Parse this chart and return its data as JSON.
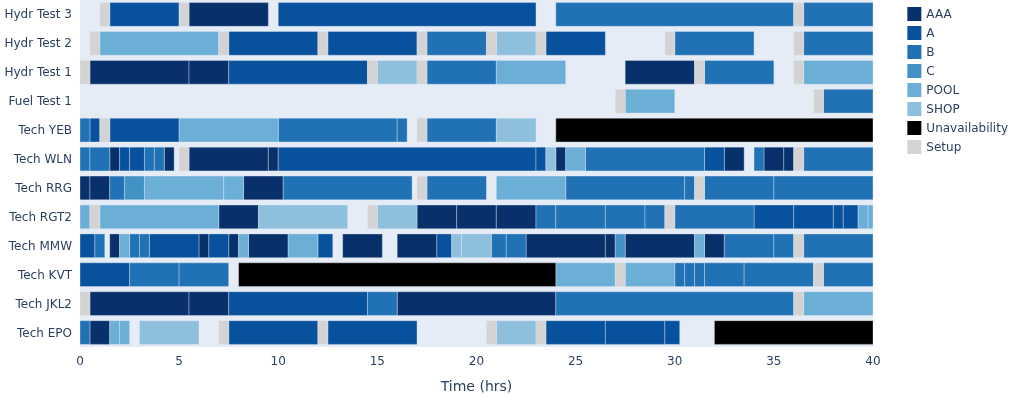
{
  "chart_data": {
    "type": "bar",
    "orientation": "horizontal",
    "xlabel": "Time (hrs)",
    "xlim": [
      0,
      40
    ],
    "xticks": [
      0,
      5,
      10,
      15,
      20,
      25,
      30,
      35,
      40
    ],
    "grid": false,
    "legend": "top right",
    "categories": [
      "Hydr Test 3",
      "Hydr Test 2",
      "Hydr Test 1",
      "Fuel Test 1",
      "Tech YEB",
      "Tech WLN",
      "Tech RRG",
      "Tech RGT2",
      "Tech MMW",
      "Tech KVT",
      "Tech JKL2",
      "Tech EPO"
    ],
    "series": [
      {
        "name": "AAA",
        "color": "#08306b",
        "base": [
          5.5,
          null,
          0.5,
          null,
          null,
          1.5,
          0,
          7,
          1.5,
          null,
          0.5,
          0.5
        ],
        "values": [
          4,
          null,
          5,
          null,
          null,
          0.5,
          0.5,
          2,
          0.5,
          null,
          5,
          1
        ]
      },
      {
        "color": "#08306b",
        "base": [
          null,
          null,
          5.5,
          null,
          null,
          4.25,
          0.5,
          17,
          6,
          null,
          5.5,
          null
        ],
        "values": [
          null,
          null,
          2,
          null,
          null,
          0.5,
          1,
          2,
          0.5,
          null,
          2,
          null
        ]
      },
      {
        "color": "#08306b",
        "base": [
          null,
          null,
          27.5,
          null,
          null,
          5.5,
          8.25,
          19,
          7.5,
          null,
          16,
          null
        ],
        "values": [
          null,
          null,
          3.5,
          null,
          null,
          4,
          2,
          2,
          0.5,
          null,
          8,
          null
        ]
      },
      {
        "color": "#08306b",
        "base": [
          null,
          null,
          null,
          null,
          null,
          9.5,
          null,
          21,
          8.5,
          null,
          null,
          null
        ],
        "values": [
          null,
          null,
          null,
          null,
          null,
          0.5,
          null,
          2,
          2,
          null,
          null,
          null
        ]
      },
      {
        "color": "#08306b",
        "base": [
          null,
          null,
          null,
          null,
          null,
          24,
          null,
          null,
          13.25,
          null,
          null,
          null
        ],
        "values": [
          null,
          null,
          null,
          null,
          null,
          0.5,
          null,
          null,
          2,
          null,
          null,
          null
        ]
      },
      {
        "color": "#08306b",
        "base": [
          null,
          null,
          null,
          null,
          null,
          32.5,
          null,
          null,
          16,
          null,
          null,
          null
        ],
        "values": [
          null,
          null,
          null,
          null,
          null,
          1,
          null,
          null,
          2,
          null,
          null,
          null
        ]
      },
      {
        "color": "#08306b",
        "base": [
          null,
          null,
          null,
          null,
          null,
          34.5,
          null,
          null,
          22.5,
          null,
          null,
          null
        ],
        "values": [
          null,
          null,
          null,
          null,
          null,
          1,
          null,
          null,
          4,
          null,
          null,
          null
        ]
      },
      {
        "color": "#08306b",
        "base": [
          null,
          null,
          null,
          null,
          null,
          35.5,
          null,
          null,
          26.5,
          null,
          null,
          null
        ],
        "values": [
          null,
          null,
          null,
          null,
          null,
          0.5,
          null,
          null,
          0.5,
          null,
          null,
          null
        ]
      },
      {
        "color": "#08306b",
        "base": [
          null,
          null,
          null,
          null,
          null,
          null,
          null,
          null,
          27.5,
          null,
          null,
          null
        ],
        "values": [
          null,
          null,
          null,
          null,
          null,
          null,
          null,
          null,
          3.5,
          null,
          null,
          null
        ]
      },
      {
        "color": "#08306b",
        "base": [
          null,
          null,
          null,
          null,
          null,
          null,
          null,
          null,
          31.5,
          null,
          null,
          null
        ],
        "values": [
          null,
          null,
          null,
          null,
          null,
          null,
          null,
          null,
          1,
          null,
          null,
          null
        ]
      },
      {
        "name": "A",
        "color": "#08519c",
        "base": [
          1.5,
          7.5,
          7.5,
          null,
          0.5,
          2,
          null,
          34,
          0,
          0,
          7.5,
          7.5
        ],
        "values": [
          3.5,
          4.5,
          7,
          null,
          0.5,
          0.5,
          null,
          2,
          0.75,
          2.5,
          7,
          4.5
        ]
      },
      {
        "color": "#08519c",
        "base": [
          10,
          12.5,
          null,
          null,
          1.5,
          2.5,
          null,
          36,
          3.5,
          null,
          null,
          12.5
        ],
        "values": [
          13,
          4.5,
          null,
          null,
          3.5,
          0.75,
          null,
          2,
          2.5,
          null,
          null,
          4.5
        ]
      },
      {
        "color": "#08519c",
        "base": [
          null,
          23.5,
          null,
          null,
          null,
          10,
          null,
          38,
          6.5,
          null,
          null,
          23.5
        ],
        "values": [
          null,
          3,
          null,
          null,
          null,
          13,
          null,
          0.5,
          1,
          null,
          null,
          3
        ]
      },
      {
        "color": "#08519c",
        "base": [
          null,
          null,
          null,
          null,
          null,
          23,
          null,
          38.5,
          12,
          null,
          null,
          26.5
        ],
        "values": [
          null,
          null,
          null,
          null,
          null,
          0.5,
          null,
          0.75,
          0.75,
          null,
          null,
          3
        ]
      },
      {
        "color": "#08519c",
        "base": [
          null,
          null,
          null,
          null,
          null,
          31.5,
          null,
          null,
          18,
          null,
          null,
          29.5
        ],
        "values": [
          null,
          null,
          null,
          null,
          null,
          1,
          null,
          null,
          0.75,
          null,
          null,
          0.75
        ]
      },
      {
        "name": "B",
        "color": "#2171b5",
        "base": [
          24,
          17.5,
          17.5,
          37.5,
          0,
          0,
          1.5,
          23,
          0.75,
          2.5,
          14.5,
          0
        ],
        "values": [
          12,
          3,
          3.5,
          2.5,
          0.5,
          0.5,
          0.75,
          1,
          0.5,
          2.5,
          1.5,
          0.5
        ]
      },
      {
        "color": "#2171b5",
        "base": [
          36.5,
          30,
          31.5,
          null,
          10,
          0.5,
          10.25,
          24,
          2.5,
          5,
          24,
          null
        ],
        "values": [
          3.5,
          4,
          3.5,
          null,
          6,
          1,
          6.5,
          2.5,
          0.5,
          2.5,
          12,
          null
        ]
      },
      {
        "color": "#2171b5",
        "base": [
          null,
          36.5,
          null,
          null,
          16,
          3.25,
          17.5,
          26.5,
          3,
          30,
          null,
          null
        ],
        "values": [
          null,
          3.5,
          null,
          null,
          0.5,
          0.5,
          3,
          2,
          0.5,
          0.5,
          null,
          null
        ]
      },
      {
        "color": "#2171b5",
        "base": [
          null,
          null,
          null,
          null,
          17.5,
          3.75,
          24.5,
          28.5,
          20.75,
          30.5,
          null,
          null
        ],
        "values": [
          null,
          null,
          null,
          null,
          3.5,
          0.5,
          6,
          1,
          0.75,
          0.5,
          null,
          null
        ]
      },
      {
        "color": "#2171b5",
        "base": [
          null,
          null,
          null,
          null,
          null,
          25.5,
          30.5,
          30,
          21.5,
          31,
          null,
          null
        ],
        "values": [
          null,
          null,
          null,
          null,
          null,
          6,
          0.5,
          4,
          1,
          0.5,
          null,
          null
        ]
      },
      {
        "color": "#2171b5",
        "base": [
          null,
          null,
          null,
          null,
          null,
          34,
          31.5,
          null,
          32.5,
          31.5,
          null,
          null
        ],
        "values": [
          null,
          null,
          null,
          null,
          null,
          0.5,
          3.5,
          null,
          2.5,
          2,
          null,
          null
        ]
      },
      {
        "color": "#2171b5",
        "base": [
          null,
          null,
          null,
          null,
          null,
          36.5,
          35,
          null,
          35,
          33.5,
          null,
          null
        ],
        "values": [
          null,
          null,
          null,
          null,
          null,
          3.5,
          5,
          null,
          1,
          3.5,
          null,
          null
        ]
      },
      {
        "color": "#2171b5",
        "base": [
          null,
          null,
          null,
          null,
          null,
          null,
          null,
          null,
          36.5,
          37.5,
          null,
          null
        ],
        "values": [
          null,
          null,
          null,
          null,
          null,
          null,
          null,
          null,
          3.5,
          2.5,
          null,
          null
        ]
      },
      {
        "name": "C",
        "color": "#4292c6",
        "base": [
          null,
          null,
          null,
          null,
          null,
          null,
          2.25,
          null,
          27,
          null,
          null,
          null
        ],
        "values": [
          null,
          null,
          null,
          null,
          null,
          null,
          1,
          null,
          0.5,
          null,
          null,
          null
        ]
      },
      {
        "name": "POOL",
        "color": "#6baed6",
        "base": [
          null,
          1,
          21,
          27.5,
          5,
          24.5,
          3.25,
          0,
          2,
          24,
          36.5,
          1.5
        ],
        "values": [
          null,
          6,
          3.5,
          2.5,
          5,
          1,
          4,
          0.5,
          0.5,
          3,
          3.5,
          0.5
        ]
      },
      {
        "color": "#6baed6",
        "base": [
          null,
          null,
          36.5,
          null,
          null,
          null,
          7.25,
          1,
          8,
          27.5,
          null,
          2
        ],
        "values": [
          null,
          null,
          3.5,
          null,
          null,
          null,
          1,
          6,
          0.5,
          2.5,
          null,
          0.5
        ]
      },
      {
        "color": "#6baed6",
        "base": [
          null,
          null,
          null,
          null,
          null,
          null,
          21,
          39.25,
          10.5,
          null,
          null,
          null
        ],
        "values": [
          null,
          null,
          null,
          null,
          null,
          null,
          3.5,
          0.5,
          1.5,
          null,
          null,
          null
        ]
      },
      {
        "color": "#6baed6",
        "base": [
          null,
          null,
          null,
          null,
          null,
          null,
          null,
          39.75,
          31,
          null,
          null,
          null
        ],
        "values": [
          null,
          null,
          null,
          null,
          null,
          null,
          null,
          0.25,
          0.5,
          null,
          null,
          null
        ]
      },
      {
        "name": "SHOP",
        "color": "#8ebfdc",
        "base": [
          null,
          21,
          15,
          null,
          21,
          23.5,
          null,
          9,
          18.75,
          null,
          null,
          3
        ],
        "values": [
          null,
          2,
          2,
          null,
          2,
          0.5,
          null,
          4.5,
          0.5,
          null,
          null,
          3
        ]
      },
      {
        "color": "#8ebfdc",
        "base": [
          null,
          null,
          null,
          null,
          null,
          null,
          null,
          15,
          19.25,
          null,
          null,
          21
        ],
        "values": [
          null,
          null,
          null,
          null,
          null,
          null,
          null,
          2,
          1.5,
          null,
          null,
          2
        ]
      },
      {
        "name": "Unavailability",
        "color": "#000000",
        "base": [
          null,
          null,
          null,
          null,
          24,
          null,
          null,
          null,
          null,
          8,
          null,
          32
        ],
        "values": [
          null,
          null,
          null,
          null,
          16,
          null,
          null,
          null,
          null,
          16,
          null,
          8
        ]
      },
      {
        "name": "Setup",
        "color": "#d3d3d3",
        "base": [
          1,
          0.5,
          0,
          27,
          1,
          5,
          17,
          0.5,
          36,
          27,
          0,
          7
        ],
        "values": [
          0.5,
          0.5,
          0.5,
          0.5,
          0.5,
          0.5,
          0.5,
          0.5,
          0.5,
          0.5,
          0.5,
          0.5
        ]
      },
      {
        "color": "#d3d3d3",
        "base": [
          5,
          7,
          14.5,
          37,
          17,
          36,
          31,
          14.5,
          null,
          37,
          36,
          12
        ],
        "values": [
          0.5,
          0.5,
          0.5,
          0.5,
          0.5,
          0.5,
          0.5,
          0.5,
          null,
          0.5,
          0.5,
          0.5
        ]
      },
      {
        "color": "#d3d3d3",
        "base": [
          36,
          12,
          17,
          null,
          null,
          null,
          null,
          29.5,
          null,
          null,
          null,
          20.5
        ],
        "values": [
          0.5,
          0.5,
          0.5,
          null,
          null,
          null,
          null,
          0.5,
          null,
          null,
          null,
          0.5
        ]
      },
      {
        "color": "#d3d3d3",
        "base": [
          null,
          17,
          31,
          null,
          null,
          null,
          null,
          null,
          null,
          null,
          null,
          23
        ],
        "values": [
          null,
          0.5,
          0.5,
          null,
          null,
          null,
          null,
          null,
          null,
          null,
          null,
          0.5
        ]
      },
      {
        "color": "#d3d3d3",
        "base": [
          null,
          20.5,
          36,
          null,
          null,
          null,
          null,
          null,
          null,
          null,
          null,
          null
        ],
        "values": [
          null,
          0.5,
          0.5,
          null,
          null,
          null,
          null,
          null,
          null,
          null,
          null,
          null
        ]
      },
      {
        "color": "#d3d3d3",
        "base": [
          null,
          23,
          null,
          null,
          null,
          null,
          null,
          null,
          null,
          null,
          null,
          null
        ],
        "values": [
          null,
          0.5,
          null,
          null,
          null,
          null,
          null,
          null,
          null,
          null,
          null,
          null
        ]
      },
      {
        "color": "#d3d3d3",
        "base": [
          null,
          29.5,
          null,
          null,
          null,
          null,
          null,
          null,
          null,
          null,
          null,
          null
        ],
        "values": [
          null,
          0.5,
          null,
          null,
          null,
          null,
          null,
          null,
          null,
          null,
          null,
          null
        ]
      },
      {
        "color": "#d3d3d3",
        "base": [
          null,
          36,
          null,
          null,
          null,
          null,
          null,
          null,
          null,
          null,
          null,
          null
        ],
        "values": [
          null,
          0.5,
          null,
          null,
          null,
          null,
          null,
          null,
          null,
          null,
          null,
          null
        ]
      }
    ]
  }
}
